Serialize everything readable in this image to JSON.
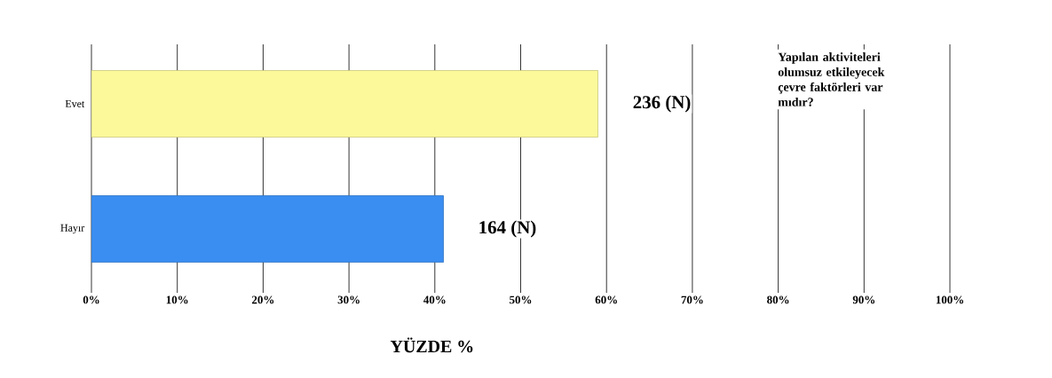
{
  "chart_data": {
    "type": "bar",
    "orientation": "horizontal",
    "title": "Yapılan aktiviteleri olumsuz etkileyecek çevre faktörleri var mıdır?",
    "xlabel": "YÜZDE %",
    "categories": [
      "Evet",
      "Hayır"
    ],
    "values": [
      59,
      41
    ],
    "colors": [
      "#fbf99a",
      "#3a8ef2"
    ],
    "annotations": [
      {
        "text": "236 (N)",
        "x": 59,
        "y": "Evet"
      },
      {
        "text": "164 (N)",
        "x": 41,
        "y": "Hayır"
      }
    ],
    "xlim": [
      0,
      100
    ],
    "xticks": [
      {
        "value": 0,
        "label": "0%"
      },
      {
        "value": 10,
        "label": "10%"
      },
      {
        "value": 20,
        "label": "20%"
      },
      {
        "value": 30,
        "label": "30%"
      },
      {
        "value": 40,
        "label": "40%"
      },
      {
        "value": 50,
        "label": "50%"
      },
      {
        "value": 60,
        "label": "60%"
      },
      {
        "value": 70,
        "label": "70%"
      },
      {
        "value": 80,
        "label": "80%"
      },
      {
        "value": 90,
        "label": "90%"
      },
      {
        "value": 100,
        "label": "100%"
      }
    ],
    "grid": "x"
  }
}
